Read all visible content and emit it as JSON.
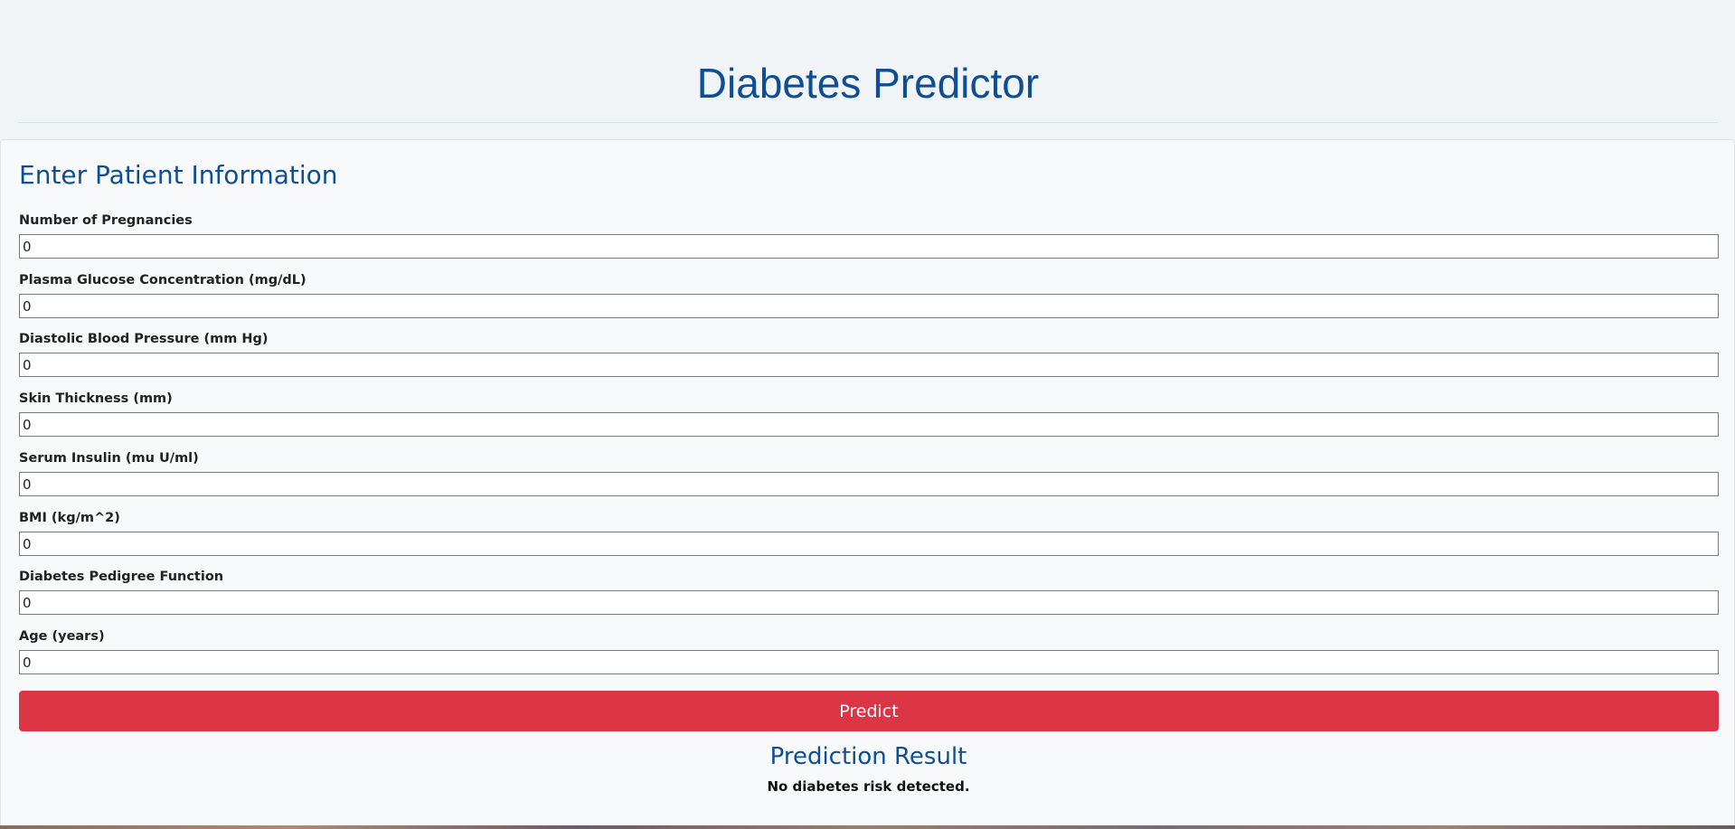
{
  "header": {
    "title": "Diabetes Predictor"
  },
  "form": {
    "heading": "Enter Patient Information",
    "fields": [
      {
        "label": "Number of Pregnancies",
        "value": "0"
      },
      {
        "label": "Plasma Glucose Concentration (mg/dL)",
        "value": "0"
      },
      {
        "label": "Diastolic Blood Pressure (mm Hg)",
        "value": "0"
      },
      {
        "label": "Skin Thickness (mm)",
        "value": "0"
      },
      {
        "label": "Serum Insulin (mu U/ml)",
        "value": "0"
      },
      {
        "label": "BMI (kg/m^2)",
        "value": "0"
      },
      {
        "label": "Diabetes Pedigree Function",
        "value": "0"
      },
      {
        "label": "Age (years)",
        "value": "0"
      }
    ],
    "predict_label": "Predict"
  },
  "result": {
    "title": "Prediction Result",
    "text": "No diabetes risk detected."
  },
  "colors": {
    "brand": "#0d4e94",
    "button": "#dc3545"
  }
}
